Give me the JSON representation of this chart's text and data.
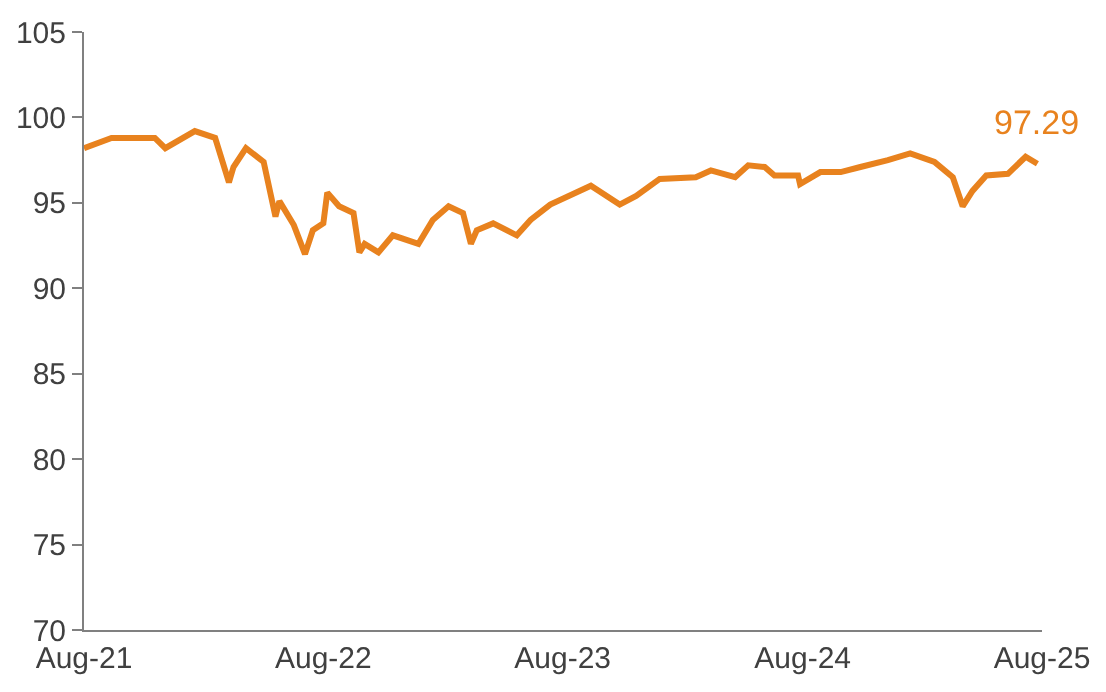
{
  "chart_data": {
    "type": "line",
    "x": [
      "2021-08-01",
      "2021-09-12",
      "2021-11-17",
      "2021-12-03",
      "2022-01-17",
      "2022-02-17",
      "2022-03-10",
      "2022-03-17",
      "2022-04-05",
      "2022-05-02",
      "2022-05-20",
      "2022-05-26",
      "2022-06-17",
      "2022-07-04",
      "2022-07-16",
      "2022-08-01",
      "2022-08-07",
      "2022-08-25",
      "2022-09-16",
      "2022-09-25",
      "2022-10-03",
      "2022-10-24",
      "2022-11-15",
      "2022-12-24",
      "2023-01-15",
      "2023-02-08",
      "2023-03-02",
      "2023-03-14",
      "2023-03-23",
      "2023-04-17",
      "2023-05-23",
      "2023-06-13",
      "2023-07-13",
      "2023-09-13",
      "2023-10-27",
      "2023-11-21",
      "2023-12-27",
      "2024-02-20",
      "2024-03-14",
      "2024-04-20",
      "2024-05-10",
      "2024-06-04",
      "2024-06-19",
      "2024-07-25",
      "2024-07-28",
      "2024-08-28",
      "2024-09-28",
      "2024-10-28",
      "2024-12-09",
      "2025-01-12",
      "2025-02-18",
      "2025-03-18",
      "2025-04-02",
      "2025-04-17",
      "2025-05-08",
      "2025-06-10",
      "2025-07-07",
      "2025-07-25"
    ],
    "series": [
      {
        "color": "#e8821e",
        "values": [
          98.2,
          98.8,
          98.8,
          98.2,
          99.2,
          98.8,
          96.2,
          97.1,
          98.2,
          97.4,
          94.2,
          95.1,
          93.7,
          92.0,
          93.4,
          93.8,
          95.6,
          94.8,
          94.4,
          92.1,
          92.6,
          92.1,
          93.1,
          92.6,
          94.0,
          94.8,
          94.4,
          92.6,
          93.4,
          93.8,
          93.1,
          94.0,
          94.9,
          96.0,
          94.9,
          95.4,
          96.4,
          96.5,
          96.9,
          96.5,
          97.2,
          97.1,
          96.6,
          96.6,
          96.1,
          96.8,
          96.8,
          97.1,
          97.5,
          97.9,
          97.4,
          96.5,
          94.8,
          95.7,
          96.6,
          96.7,
          97.7,
          97.29
        ]
      }
    ],
    "annotations": [
      {
        "text": "97.29",
        "x": "2025-07-25",
        "y": 97.29
      }
    ],
    "xlim": [
      "2021-08-01",
      "2025-08-01"
    ],
    "xticks": [
      {
        "value": "2021-08-01",
        "label": "Aug-21"
      },
      {
        "value": "2022-08-01",
        "label": "Aug-22"
      },
      {
        "value": "2023-08-01",
        "label": "Aug-23"
      },
      {
        "value": "2024-08-01",
        "label": "Aug-24"
      },
      {
        "value": "2025-08-01",
        "label": "Aug-25"
      }
    ],
    "ylim": [
      70,
      105
    ],
    "yticks": [
      70,
      75,
      80,
      85,
      90,
      95,
      100,
      105
    ],
    "marker": "none",
    "line_style": "solid"
  }
}
